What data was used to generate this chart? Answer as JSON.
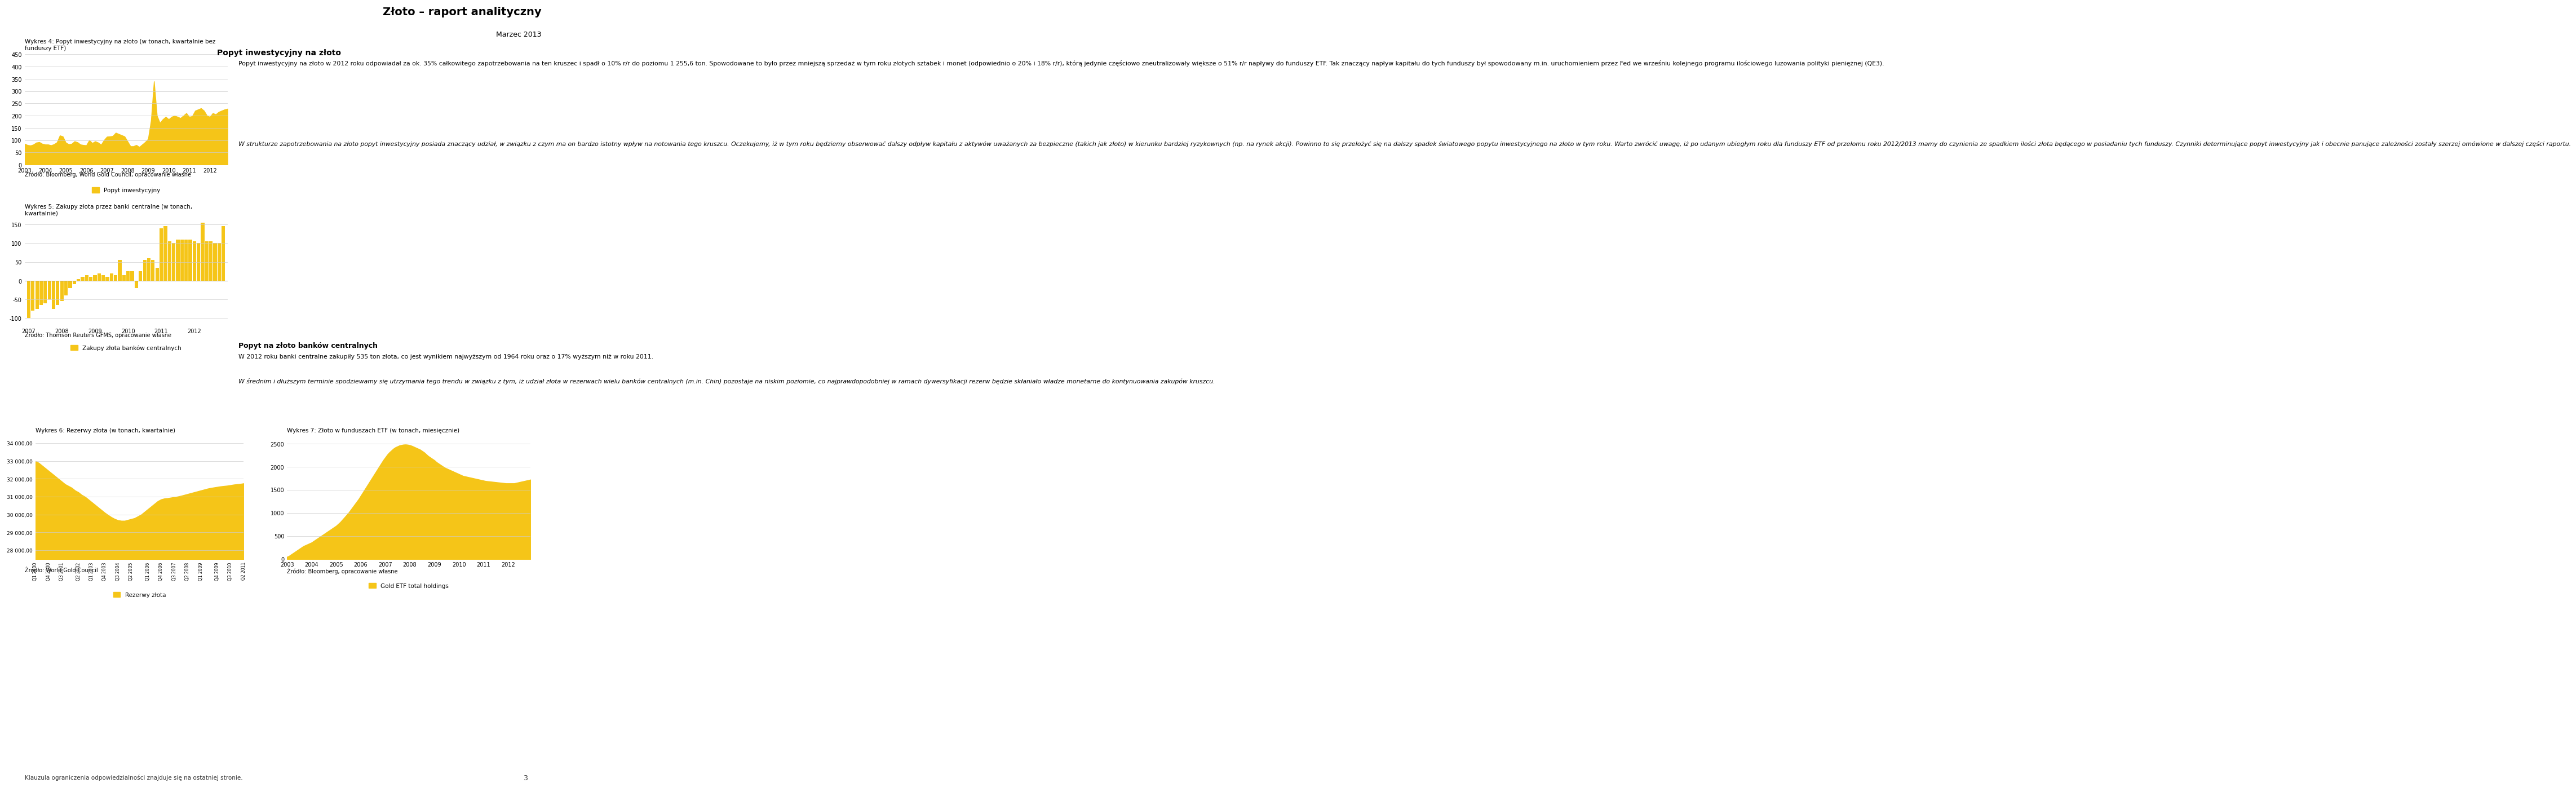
{
  "title": "Złoto – raport analityczny",
  "subtitle": "Marzec 2013",
  "header_bar_color": "#F5C518",
  "header_line_color": "#F5C518",
  "bg_color": "#FFFFFF",
  "chart1_title": "Wykres 4: Popyt inwestycyjny na złoto (w tonach, kwartalnie bez\nfunduszy ETF)",
  "chart1_yticks": [
    0,
    50,
    100,
    150,
    200,
    250,
    300,
    350,
    400,
    450
  ],
  "chart1_xlabels": [
    "2003",
    "2004",
    "2005",
    "2006",
    "2007",
    "2008",
    "2009",
    "2010",
    "2011",
    "2012"
  ],
  "chart1_legend": "Popyt inwestycyjny",
  "chart1_color": "#F5C518",
  "chart1_source": "Źródło: Bloomberg, World Gold Council, opracowanie własne",
  "chart1_data": [
    85,
    80,
    78,
    82,
    90,
    92,
    85,
    82,
    82,
    79,
    83,
    91,
    119,
    115,
    90,
    83,
    85,
    95,
    91,
    82,
    80,
    79,
    100,
    88,
    95,
    90,
    81,
    100,
    114,
    115,
    117,
    130,
    125,
    120,
    115,
    95,
    75,
    75,
    80,
    72,
    82,
    92,
    105,
    180,
    340,
    200,
    170,
    185,
    195,
    185,
    195,
    200,
    195,
    190,
    200,
    210,
    195,
    198,
    220,
    225,
    230,
    220,
    200,
    195,
    210,
    205,
    215,
    220,
    225,
    228
  ],
  "chart2_title": "Wykres 5: Zakupy złota przez banki centralne (w tonach,\nkwartalnie)",
  "chart2_source": "Źródło: Thomson Reuters GFMS, opracowanie własne",
  "chart2_legend": "Zakupy złota banków centralnych",
  "chart2_color": "#F5C518",
  "chart2_yticks": [
    -100,
    -50,
    0,
    50,
    100,
    150
  ],
  "chart2_xlabels": [
    "2007",
    "2008",
    "2009",
    "2010",
    "2011",
    "2012"
  ],
  "chart2_data": [
    -100,
    -80,
    -75,
    -65,
    -60,
    -50,
    -75,
    -65,
    -55,
    -40,
    -20,
    -10,
    5,
    10,
    15,
    10,
    15,
    20,
    15,
    10,
    20,
    15,
    55,
    15,
    25,
    25,
    -20,
    25,
    55,
    60,
    55,
    35,
    140,
    145,
    105,
    100,
    110,
    110,
    110,
    110,
    105,
    100,
    155,
    105,
    105,
    100,
    100,
    145
  ],
  "chart3_title": "Wykres 6: Rezerwy złota (w tonach, kwartalnie)",
  "chart3_source": "Źródło: World Gold Council",
  "chart3_legend": "Rezerwy złota",
  "chart3_color": "#F5C518",
  "chart3_yticks": [
    28000,
    29000,
    30000,
    31000,
    32000,
    33000,
    34000
  ],
  "chart3_yticklabels": [
    "28 000,00",
    "29 000,00",
    "30 000,00",
    "31 000,00",
    "32 000,00",
    "33 000,00",
    "34 000,00"
  ],
  "chart3_xlabels": [
    "Q1 2000",
    "Q4 2000",
    "Q3 2001",
    "Q2 2002",
    "Q1 2003",
    "Q4 2003",
    "Q3 2004",
    "Q2 2005",
    "Q1 2006",
    "Q4 2006",
    "Q3 2007",
    "Q2 2008",
    "Q1 2009",
    "Q4 2009",
    "Q3 2010",
    "Q2 2011"
  ],
  "chart3_data": [
    33000,
    32900,
    32750,
    32600,
    32450,
    32300,
    32150,
    32000,
    31850,
    31700,
    31600,
    31500,
    31350,
    31250,
    31100,
    31000,
    30850,
    30700,
    30550,
    30400,
    30250,
    30100,
    29970,
    29850,
    29750,
    29680,
    29650,
    29650,
    29700,
    29750,
    29800,
    29900,
    30000,
    30150,
    30300,
    30450,
    30600,
    30750,
    30850,
    30900,
    30920,
    30950,
    30980,
    31010,
    31050,
    31100,
    31150,
    31200,
    31250,
    31300,
    31350,
    31400,
    31450,
    31490,
    31520,
    31550,
    31580,
    31600,
    31620,
    31650,
    31680,
    31700,
    31720,
    31750
  ],
  "chart4_title": "Wykres 7: Złoto w funduszach ETF (w tonach, miesięcznie)",
  "chart4_source": "Źródło: Bloomberg, opracowanie własne",
  "chart4_legend": "Gold ETF total holdings",
  "chart4_color": "#F5C518",
  "chart4_yticks": [
    0,
    500,
    1000,
    1500,
    2000,
    2500
  ],
  "chart4_xlabels": [
    "2003",
    "2004",
    "2005",
    "2006",
    "2007",
    "2008",
    "2009",
    "2010",
    "2011",
    "2012"
  ],
  "chart4_data": [
    50,
    70,
    100,
    130,
    160,
    190,
    220,
    250,
    280,
    300,
    320,
    340,
    360,
    390,
    420,
    450,
    480,
    510,
    540,
    570,
    600,
    630,
    660,
    690,
    720,
    760,
    800,
    850,
    900,
    950,
    1000,
    1060,
    1120,
    1180,
    1240,
    1300,
    1370,
    1440,
    1510,
    1580,
    1650,
    1720,
    1790,
    1860,
    1930,
    2000,
    2070,
    2140,
    2200,
    2260,
    2310,
    2350,
    2390,
    2420,
    2440,
    2460,
    2470,
    2478,
    2480,
    2475,
    2465,
    2450,
    2430,
    2410,
    2390,
    2370,
    2340,
    2310,
    2270,
    2230,
    2200,
    2170,
    2140,
    2100,
    2070,
    2040,
    2010,
    1980,
    1960,
    1940,
    1920,
    1900,
    1880,
    1860,
    1840,
    1820,
    1800,
    1790,
    1780,
    1770,
    1760,
    1750,
    1740,
    1730,
    1720,
    1710,
    1700,
    1690,
    1685,
    1680,
    1675,
    1670,
    1665,
    1660,
    1655,
    1650,
    1645,
    1640,
    1640,
    1640,
    1640,
    1640,
    1650,
    1660,
    1670,
    1680,
    1690,
    1700,
    1710,
    1720
  ],
  "text_block_title": "Popyt inwestycyjny na złoto",
  "text_block_para1": "Popyt inwestycyjny na złoto w 2012 roku odpowiadał za ok. 35% całkowitego zapotrzebowania na ten kruszec i spadł o 10% r/r do poziomu 1 255,6 ton. Spowodowane to było przez mniejszą sprzedaż w tym roku złotych sztabek i monet (odpowiednio o 20% i 18% r/r), którą jedynie częściowo zneutralizowały większe o 51% r/r napływy do funduszy ETF. Tak znaczący napływ kapitału do tych funduszy był spowodowany m.in. uruchomieniem przez Fed we wrześniu kolejnego programu ilościowego luzowania polityki pieniężnej (QE3).",
  "text_block_italic": "W strukturze zapotrzebowania na złoto popyt inwestycyjny posiada znaczący udział, w związku z czym ma on bardzo istotny wpływ na notowania tego kruszcu. Oczekujemy, iż w tym roku będziemy obserwować dalszy odpływ kapitału z aktywów uważanych za bezpieczne (takich jak złoto) w kierunku bardziej ryzykownych (np. na rynek akcji). Powinno to się przełożyć się na dalszy spadek światowego popytu inwestycyjnego na złoto w tym roku. Warto zwrócić uwagę, iż po udanym ubiegłym roku dla funduszy ETF od przełomu roku 2012/2013 mamy do czynienia ze spadkiem ilości złota będącego w posiadaniu tych funduszy. Czynniki determinujące popyt inwestycyjny jak i obecnie panujące zależności zostały szerzej omówione w dalszej części raportu.",
  "text_block2_title": "Popyt na złoto banków centralnych",
  "text_block2_para1": "W 2012 roku banki centralne zakupiły 535 ton złota, co jest wynikiem najwyższym od 1964 roku oraz o 17% wyższym niż w roku 2011.",
  "text_block2_italic": "W średnim i dłuższym terminie spodziewamy się utrzymania tego trendu w związku z tym, iż udział złota w rezerwach wielu banków centralnych (m.in. Chin) pozostaje na niskim poziomie, co najprawdopodobniej w ramach dywersyfikacji rezerw będzie skłaniało władze monetarne do kontynuowania zakupów kruszcu.",
  "footer_text": "Klauzula ograniczenia odpowiedzialności znajduje się na ostatniej stronie.",
  "page_num": "3"
}
